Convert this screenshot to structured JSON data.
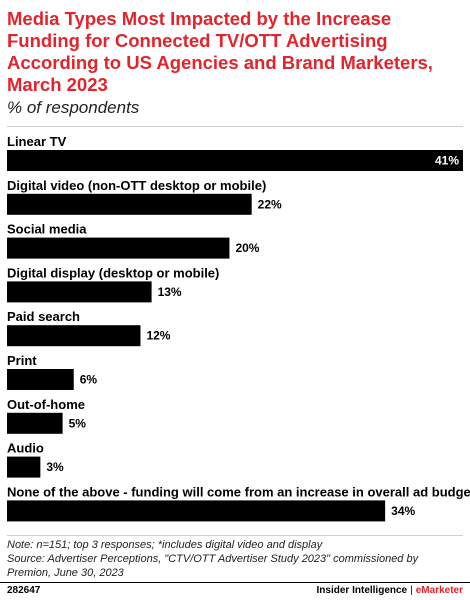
{
  "header": {
    "title": "Media Types Most Impacted by the Increase Funding for Connected TV/OTT Advertising According to US Agencies and Brand Marketers, March 2023",
    "subtitle": "% of respondents"
  },
  "chart_data": {
    "type": "bar",
    "orientation": "horizontal",
    "title": "Media Types Most Impacted by the Increase Funding for Connected TV/OTT Advertising According to US Agencies and Brand Marketers, March 2023",
    "subtitle": "% of respondents",
    "categories": [
      "Linear TV",
      "Digital video (non-OTT desktop or mobile)",
      "Social media",
      "Digital display (desktop or mobile)",
      "Paid search",
      "Print",
      "Out-of-home",
      "Audio",
      "None of the above - funding will come from an increase in overall ad budget"
    ],
    "values": [
      41,
      22,
      20,
      13,
      12,
      6,
      5,
      3,
      34
    ],
    "value_labels": [
      "41%",
      "22%",
      "20%",
      "13%",
      "12%",
      "6%",
      "5%",
      "3%",
      "34%"
    ],
    "xlim": [
      0,
      41
    ],
    "grid": false,
    "legend": "none",
    "bar_color": "#000000"
  },
  "notes": {
    "line1": "Note: n=151; top 3 responses; *includes digital video and display",
    "line2": "Source: Advertiser Perceptions, \"CTV/OTT Advertiser Study 2023\" commissioned by",
    "line3": "Premion, June 30, 2023"
  },
  "footer": {
    "chart_id": "282647",
    "brand_left": "Insider Intelligence",
    "separator": "|",
    "brand_right": "eMarketer"
  }
}
